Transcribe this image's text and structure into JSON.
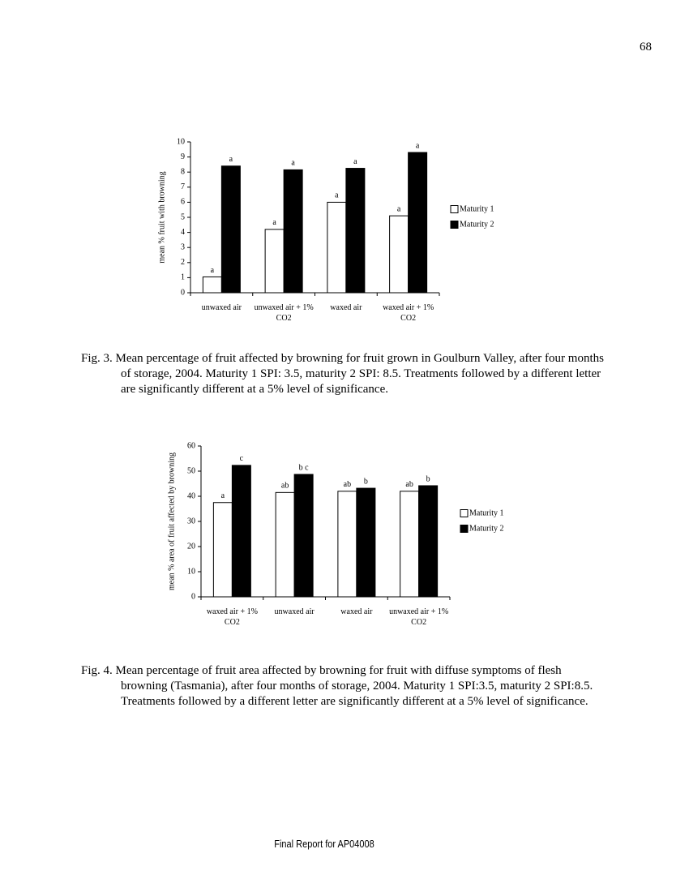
{
  "page_number": 68,
  "chart_data": [
    {
      "type": "bar",
      "y_label": "mean % fruit with browning",
      "categories": [
        "unwaxed air",
        "unwaxed air + 1% CO2",
        "waxed air",
        "waxed air + 1% CO2"
      ],
      "series": [
        {
          "name": "Maturity 1",
          "color": "#ffffff",
          "values": [
            1.05,
            4.2,
            6.0,
            5.1
          ],
          "annotations": [
            "a",
            "a",
            "a",
            "a"
          ]
        },
        {
          "name": "Maturity 2",
          "color": "#000000",
          "values": [
            8.4,
            8.15,
            8.25,
            9.3
          ],
          "annotations": [
            "a",
            "a",
            "a",
            "a"
          ]
        }
      ],
      "ylim": [
        0,
        10
      ],
      "yticks": [
        0,
        1,
        2,
        3,
        4,
        5,
        6,
        7,
        8,
        9,
        10
      ],
      "grid": false,
      "legend": "right"
    },
    {
      "type": "bar",
      "y_label": "mean % area of fruit affected by browning",
      "categories": [
        "waxed air + 1% CO2",
        "unwaxed air",
        "waxed air",
        "unwaxed air + 1% CO2"
      ],
      "series": [
        {
          "name": "Maturity 1",
          "color": "#ffffff",
          "values": [
            37.5,
            41.5,
            42,
            42
          ],
          "annotations": [
            "a",
            "ab",
            "ab",
            "ab"
          ]
        },
        {
          "name": "Maturity 2",
          "color": "#000000",
          "values": [
            52.3,
            48.7,
            43.2,
            44.2
          ],
          "annotations": [
            "c",
            "b c",
            "b",
            "b"
          ]
        }
      ],
      "ylim": [
        0,
        60
      ],
      "yticks": [
        0,
        10,
        20,
        30,
        40,
        50,
        60
      ],
      "grid": false,
      "legend": "right"
    }
  ],
  "captions": [
    "Fig. 3. Mean percentage of fruit affected by browning for fruit grown in Goulburn Valley, after four months of storage, 2004. Maturity 1 SPI: 3.5, maturity 2 SPI: 8.5. Treatments followed by a different letter are significantly different at a 5% level of significance.",
    "Fig. 4. Mean percentage of fruit area affected by browning for fruit with diffuse symptoms of flesh browning (Tasmania), after four months of storage, 2004. Maturity 1 SPI:3.5, maturity 2 SPI:8.5. Treatments followed by a different letter are significantly different at a 5% level of significance."
  ],
  "footer": "Final Report for AP04008"
}
